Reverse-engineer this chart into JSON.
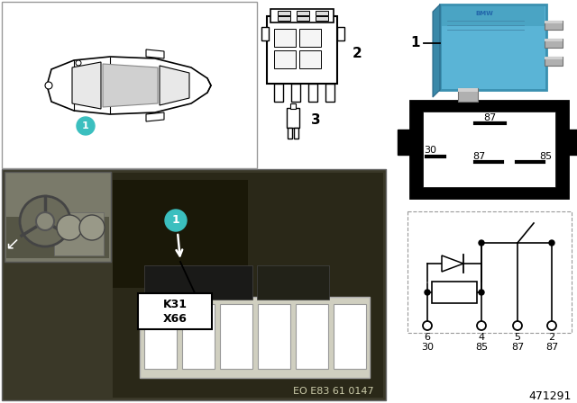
{
  "bg_color": "#ffffff",
  "fig_width": 6.4,
  "fig_height": 4.48,
  "dpi": 100,
  "teal_color": "#3bbfbf",
  "relay_blue": "#5ab4d6",
  "relay_blue_dark": "#3a90b0",
  "relay_blue_mid": "#4aa4c4",
  "gray_pin": "#999999",
  "gray_pin_dark": "#666666",
  "photo_bg": "#4a4a3a",
  "photo_dark": "#2a2a1a",
  "inset_bg": "#888878",
  "diagram_number": "471291",
  "eo_label": "EO E83 61 0147",
  "car_box_border": "#aaaaaa",
  "connector_label": "2",
  "terminal_label": "3",
  "relay_label": "1",
  "circuit_pins_top": [
    "6",
    "4",
    "5",
    "2"
  ],
  "circuit_pins_bot": [
    "30",
    "85",
    "87",
    "87"
  ]
}
